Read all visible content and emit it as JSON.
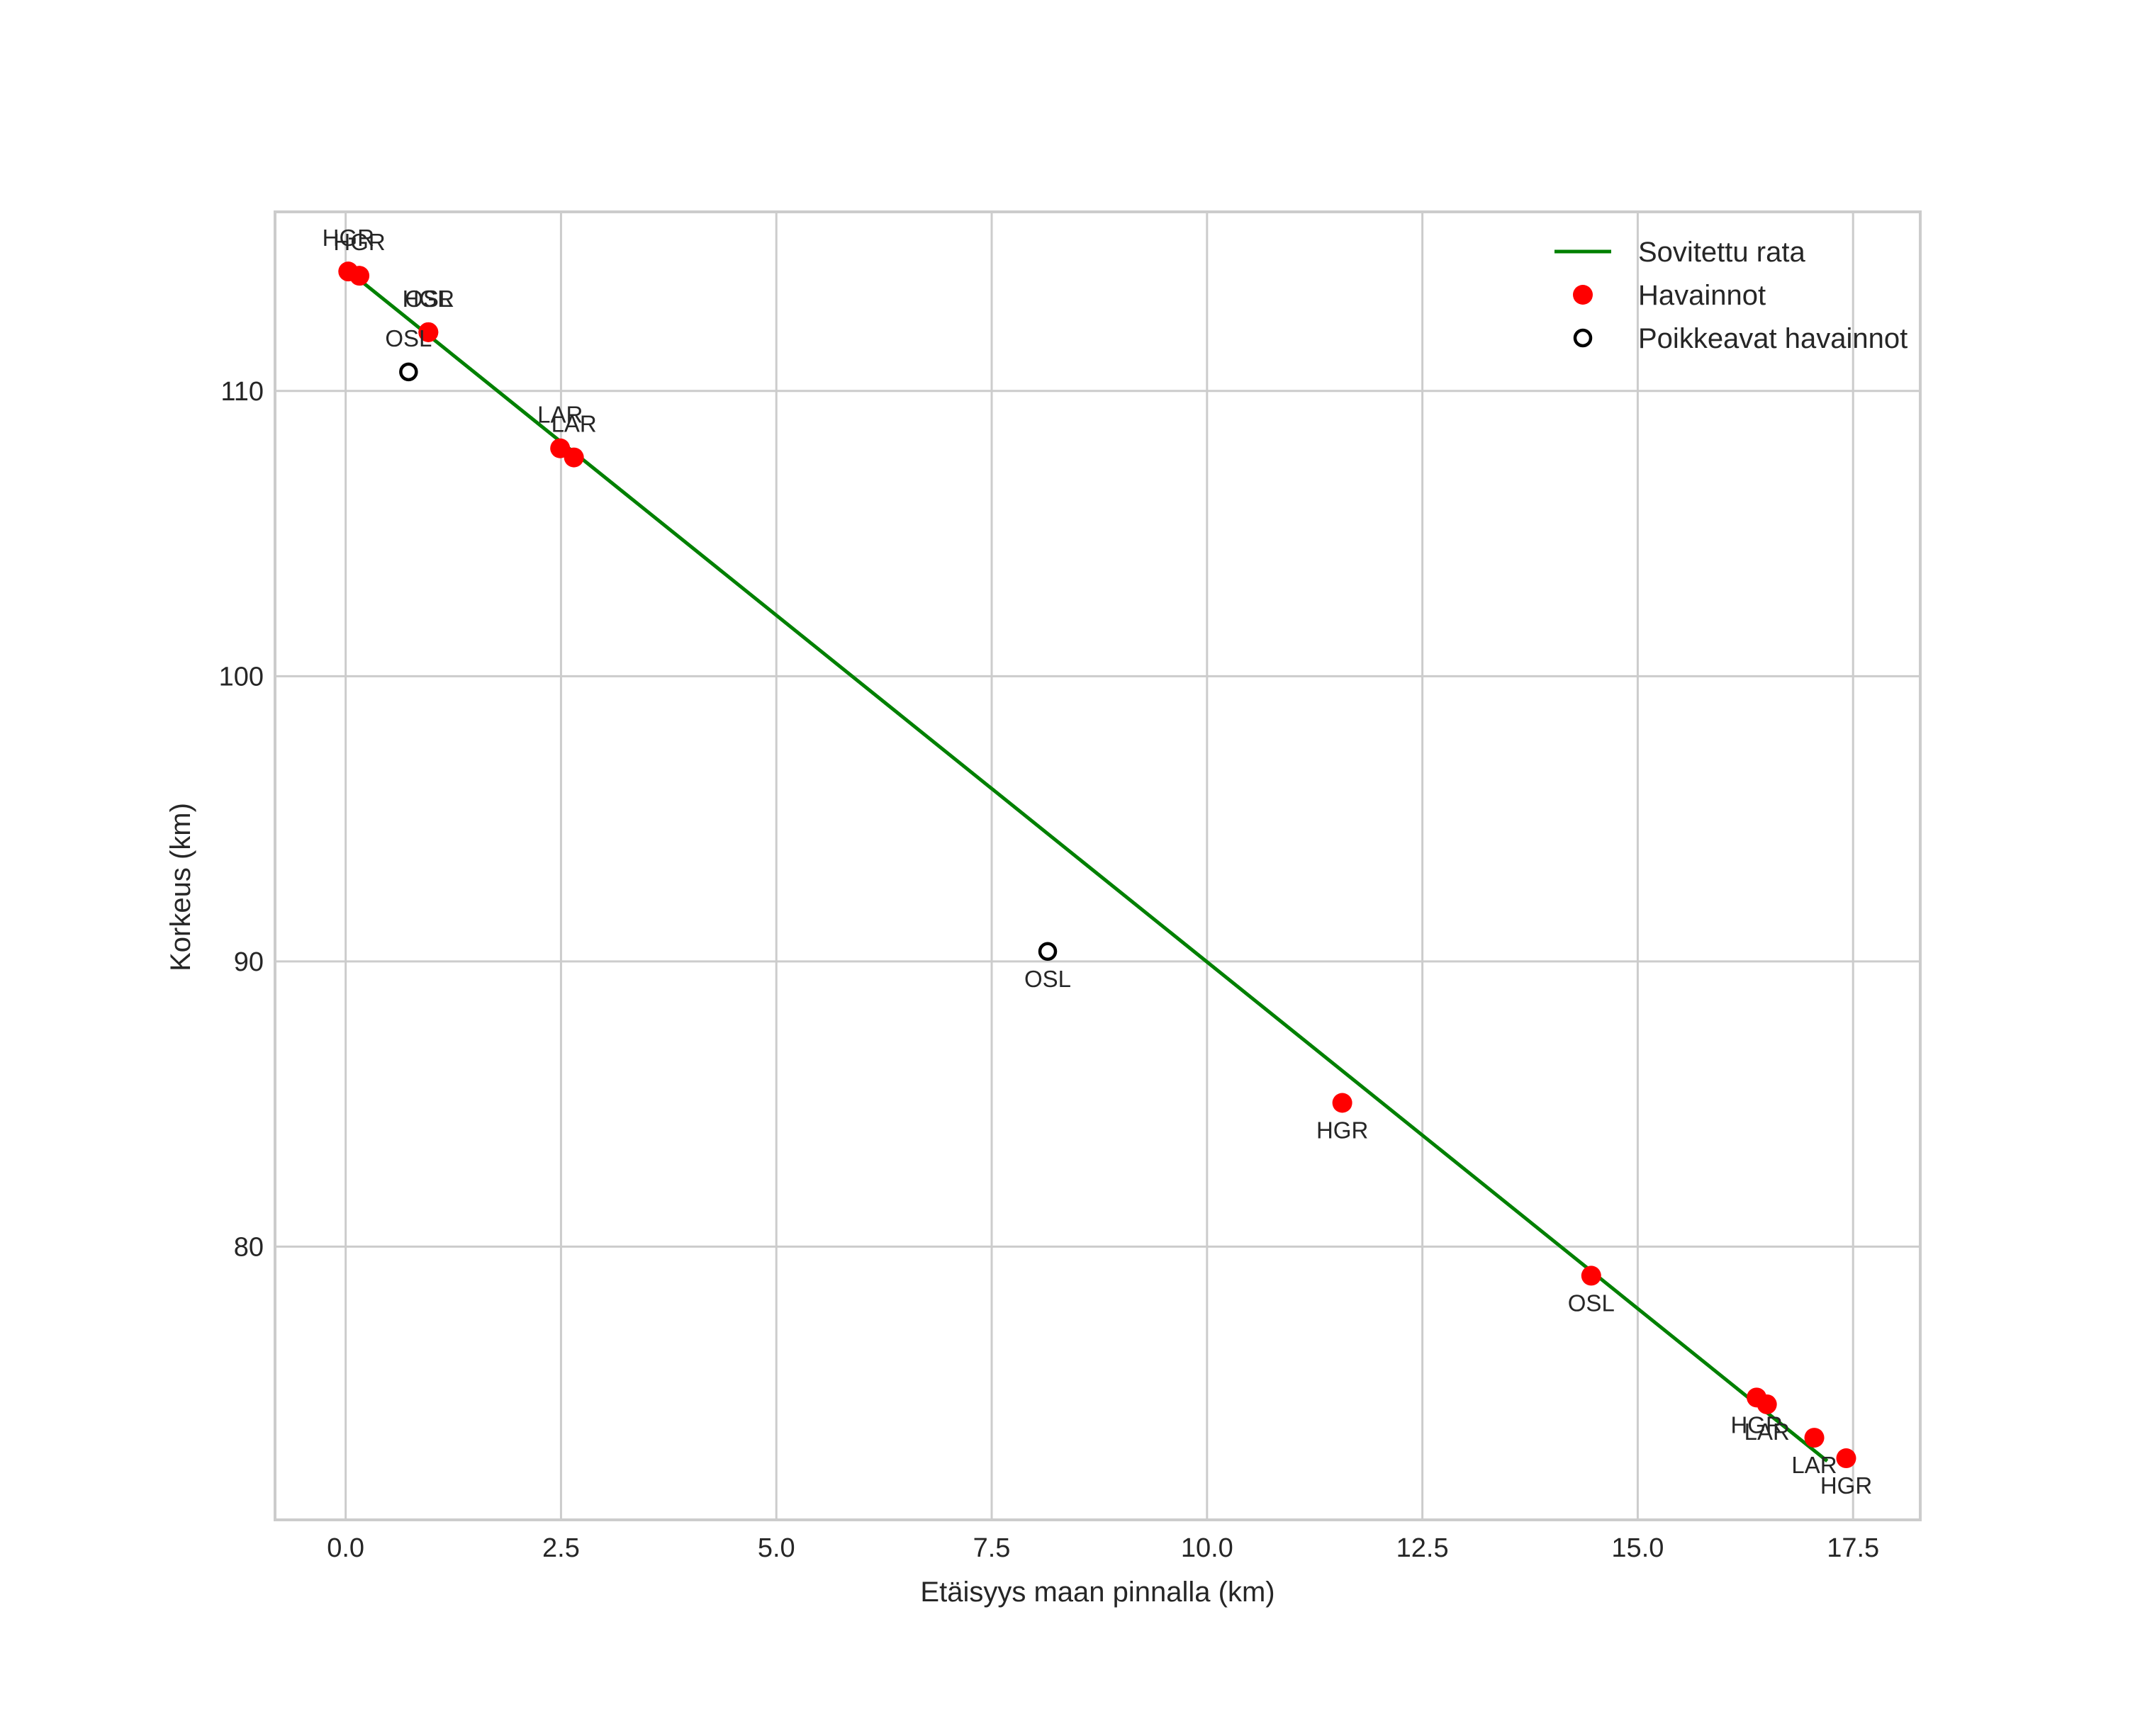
{
  "chart_data": {
    "type": "scatter",
    "title": "",
    "xlabel": "Etäisyys maan pinnalla (km)",
    "ylabel": "Korkeus (km)",
    "xlim": [
      -0.82,
      18.28
    ],
    "ylim": [
      70.42,
      116.28
    ],
    "xticks": [
      0.0,
      2.5,
      5.0,
      7.5,
      10.0,
      12.5,
      15.0,
      17.5
    ],
    "xtick_labels": [
      "0.0",
      "2.5",
      "5.0",
      "7.5",
      "10.0",
      "12.5",
      "15.0",
      "17.5"
    ],
    "yticks": [
      80,
      90,
      100,
      110
    ],
    "ytick_labels": [
      "80",
      "90",
      "100",
      "110"
    ],
    "grid": true,
    "legend_position": "upper right",
    "legend": [
      {
        "label": "Sovitettu rata",
        "marker": "line",
        "color": "#008000"
      },
      {
        "label": "Havainnot",
        "marker": "filled-circle",
        "color": "#ff0000"
      },
      {
        "label": "Poikkeavat havainnot",
        "marker": "hollow-circle",
        "color": "#000000"
      }
    ],
    "series": [
      {
        "name": "Sovitettu rata",
        "type": "line",
        "color": "#008000",
        "x": [
          0.16,
          17.2
        ],
        "y": [
          113.9,
          72.48
        ]
      },
      {
        "name": "Havainnot",
        "type": "scatter",
        "color": "#ff0000",
        "points": [
          {
            "x": 0.03,
            "y": 114.19,
            "label": "HGR",
            "label_pos": "above"
          },
          {
            "x": 0.16,
            "y": 114.04,
            "label": "HGR",
            "label_pos": "above"
          },
          {
            "x": 0.96,
            "y": 112.06,
            "label": "HGR",
            "label_pos": "above"
          },
          {
            "x": 0.96,
            "y": 112.06,
            "label": "OSL",
            "label_pos": "above"
          },
          {
            "x": 2.49,
            "y": 107.99,
            "label": "LAR",
            "label_pos": "above"
          },
          {
            "x": 2.65,
            "y": 107.67,
            "label": "LAR",
            "label_pos": "above"
          },
          {
            "x": 11.57,
            "y": 85.04,
            "label": "HGR",
            "label_pos": "below"
          },
          {
            "x": 14.46,
            "y": 78.98,
            "label": "OSL",
            "label_pos": "below"
          },
          {
            "x": 16.38,
            "y": 74.71,
            "label": "HGR",
            "label_pos": "below"
          },
          {
            "x": 16.5,
            "y": 74.47,
            "label": "LAR",
            "label_pos": "below"
          },
          {
            "x": 17.05,
            "y": 73.3,
            "label": "LAR",
            "label_pos": "below"
          },
          {
            "x": 17.42,
            "y": 72.58,
            "label": "HGR",
            "label_pos": "below"
          }
        ]
      },
      {
        "name": "Poikkeavat havainnot",
        "type": "scatter",
        "color": "#000000",
        "hollow": true,
        "points": [
          {
            "x": 0.73,
            "y": 110.67,
            "label": "OSL",
            "label_pos": "above"
          },
          {
            "x": 8.15,
            "y": 90.35,
            "label": "OSL",
            "label_pos": "below"
          }
        ]
      }
    ]
  },
  "colors": {
    "fit_line": "#008000",
    "observations": "#ff0000",
    "outliers": "#000000",
    "grid": "#cccccc",
    "frame": "#cccccc",
    "text": "#262626"
  }
}
